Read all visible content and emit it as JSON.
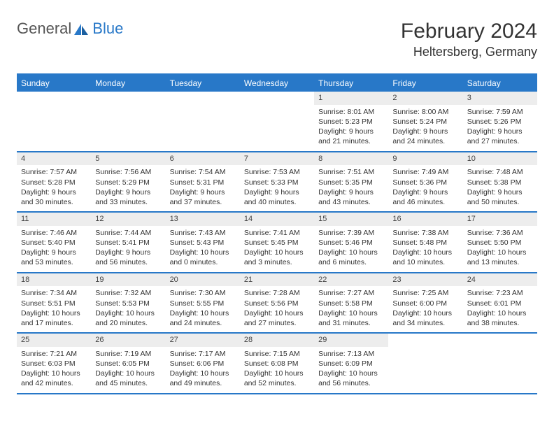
{
  "logo": {
    "part1": "General",
    "part2": "Blue"
  },
  "title": "February 2024",
  "location": "Heltersberg, Germany",
  "colors": {
    "brand": "#2878c8",
    "daybar": "#ededed",
    "text": "#333333"
  },
  "daynames": [
    "Sunday",
    "Monday",
    "Tuesday",
    "Wednesday",
    "Thursday",
    "Friday",
    "Saturday"
  ],
  "weeks": [
    [
      null,
      null,
      null,
      null,
      {
        "n": "1",
        "sr": "Sunrise: 8:01 AM",
        "ss": "Sunset: 5:23 PM",
        "d1": "Daylight: 9 hours",
        "d2": "and 21 minutes."
      },
      {
        "n": "2",
        "sr": "Sunrise: 8:00 AM",
        "ss": "Sunset: 5:24 PM",
        "d1": "Daylight: 9 hours",
        "d2": "and 24 minutes."
      },
      {
        "n": "3",
        "sr": "Sunrise: 7:59 AM",
        "ss": "Sunset: 5:26 PM",
        "d1": "Daylight: 9 hours",
        "d2": "and 27 minutes."
      }
    ],
    [
      {
        "n": "4",
        "sr": "Sunrise: 7:57 AM",
        "ss": "Sunset: 5:28 PM",
        "d1": "Daylight: 9 hours",
        "d2": "and 30 minutes."
      },
      {
        "n": "5",
        "sr": "Sunrise: 7:56 AM",
        "ss": "Sunset: 5:29 PM",
        "d1": "Daylight: 9 hours",
        "d2": "and 33 minutes."
      },
      {
        "n": "6",
        "sr": "Sunrise: 7:54 AM",
        "ss": "Sunset: 5:31 PM",
        "d1": "Daylight: 9 hours",
        "d2": "and 37 minutes."
      },
      {
        "n": "7",
        "sr": "Sunrise: 7:53 AM",
        "ss": "Sunset: 5:33 PM",
        "d1": "Daylight: 9 hours",
        "d2": "and 40 minutes."
      },
      {
        "n": "8",
        "sr": "Sunrise: 7:51 AM",
        "ss": "Sunset: 5:35 PM",
        "d1": "Daylight: 9 hours",
        "d2": "and 43 minutes."
      },
      {
        "n": "9",
        "sr": "Sunrise: 7:49 AM",
        "ss": "Sunset: 5:36 PM",
        "d1": "Daylight: 9 hours",
        "d2": "and 46 minutes."
      },
      {
        "n": "10",
        "sr": "Sunrise: 7:48 AM",
        "ss": "Sunset: 5:38 PM",
        "d1": "Daylight: 9 hours",
        "d2": "and 50 minutes."
      }
    ],
    [
      {
        "n": "11",
        "sr": "Sunrise: 7:46 AM",
        "ss": "Sunset: 5:40 PM",
        "d1": "Daylight: 9 hours",
        "d2": "and 53 minutes."
      },
      {
        "n": "12",
        "sr": "Sunrise: 7:44 AM",
        "ss": "Sunset: 5:41 PM",
        "d1": "Daylight: 9 hours",
        "d2": "and 56 minutes."
      },
      {
        "n": "13",
        "sr": "Sunrise: 7:43 AM",
        "ss": "Sunset: 5:43 PM",
        "d1": "Daylight: 10 hours",
        "d2": "and 0 minutes."
      },
      {
        "n": "14",
        "sr": "Sunrise: 7:41 AM",
        "ss": "Sunset: 5:45 PM",
        "d1": "Daylight: 10 hours",
        "d2": "and 3 minutes."
      },
      {
        "n": "15",
        "sr": "Sunrise: 7:39 AM",
        "ss": "Sunset: 5:46 PM",
        "d1": "Daylight: 10 hours",
        "d2": "and 6 minutes."
      },
      {
        "n": "16",
        "sr": "Sunrise: 7:38 AM",
        "ss": "Sunset: 5:48 PM",
        "d1": "Daylight: 10 hours",
        "d2": "and 10 minutes."
      },
      {
        "n": "17",
        "sr": "Sunrise: 7:36 AM",
        "ss": "Sunset: 5:50 PM",
        "d1": "Daylight: 10 hours",
        "d2": "and 13 minutes."
      }
    ],
    [
      {
        "n": "18",
        "sr": "Sunrise: 7:34 AM",
        "ss": "Sunset: 5:51 PM",
        "d1": "Daylight: 10 hours",
        "d2": "and 17 minutes."
      },
      {
        "n": "19",
        "sr": "Sunrise: 7:32 AM",
        "ss": "Sunset: 5:53 PM",
        "d1": "Daylight: 10 hours",
        "d2": "and 20 minutes."
      },
      {
        "n": "20",
        "sr": "Sunrise: 7:30 AM",
        "ss": "Sunset: 5:55 PM",
        "d1": "Daylight: 10 hours",
        "d2": "and 24 minutes."
      },
      {
        "n": "21",
        "sr": "Sunrise: 7:28 AM",
        "ss": "Sunset: 5:56 PM",
        "d1": "Daylight: 10 hours",
        "d2": "and 27 minutes."
      },
      {
        "n": "22",
        "sr": "Sunrise: 7:27 AM",
        "ss": "Sunset: 5:58 PM",
        "d1": "Daylight: 10 hours",
        "d2": "and 31 minutes."
      },
      {
        "n": "23",
        "sr": "Sunrise: 7:25 AM",
        "ss": "Sunset: 6:00 PM",
        "d1": "Daylight: 10 hours",
        "d2": "and 34 minutes."
      },
      {
        "n": "24",
        "sr": "Sunrise: 7:23 AM",
        "ss": "Sunset: 6:01 PM",
        "d1": "Daylight: 10 hours",
        "d2": "and 38 minutes."
      }
    ],
    [
      {
        "n": "25",
        "sr": "Sunrise: 7:21 AM",
        "ss": "Sunset: 6:03 PM",
        "d1": "Daylight: 10 hours",
        "d2": "and 42 minutes."
      },
      {
        "n": "26",
        "sr": "Sunrise: 7:19 AM",
        "ss": "Sunset: 6:05 PM",
        "d1": "Daylight: 10 hours",
        "d2": "and 45 minutes."
      },
      {
        "n": "27",
        "sr": "Sunrise: 7:17 AM",
        "ss": "Sunset: 6:06 PM",
        "d1": "Daylight: 10 hours",
        "d2": "and 49 minutes."
      },
      {
        "n": "28",
        "sr": "Sunrise: 7:15 AM",
        "ss": "Sunset: 6:08 PM",
        "d1": "Daylight: 10 hours",
        "d2": "and 52 minutes."
      },
      {
        "n": "29",
        "sr": "Sunrise: 7:13 AM",
        "ss": "Sunset: 6:09 PM",
        "d1": "Daylight: 10 hours",
        "d2": "and 56 minutes."
      },
      null,
      null
    ]
  ]
}
